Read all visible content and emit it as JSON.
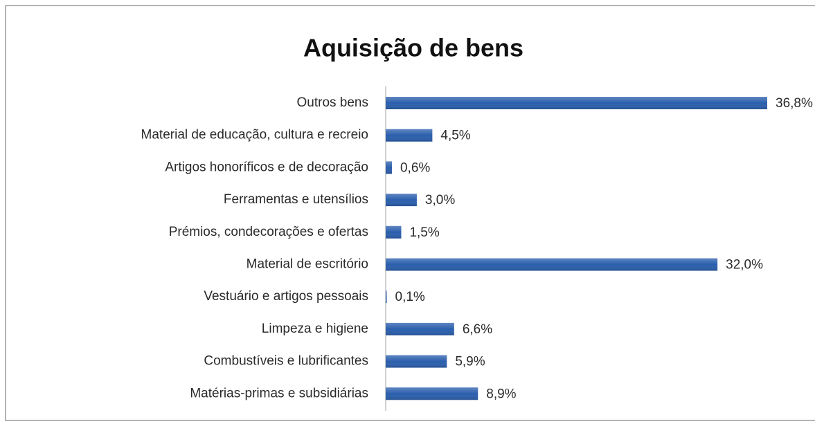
{
  "chart_data": {
    "type": "barh",
    "title": "Aquisição de bens",
    "categories": [
      "Outros bens",
      "Material de educação, cultura e recreio",
      "Artigos honoríficos e de decoração",
      "Ferramentas e utensílios",
      "Prémios, condecorações e ofertas",
      "Material de escritório",
      "Vestuário e artigos pessoais",
      "Limpeza e higiene",
      "Combustíveis e lubrificantes",
      "Matérias-primas e subsidiárias"
    ],
    "values": [
      36.8,
      4.5,
      0.6,
      3.0,
      1.5,
      32.0,
      0.1,
      6.6,
      5.9,
      8.9
    ],
    "value_labels": [
      "36,8%",
      "4,5%",
      "0,6%",
      "3,0%",
      "1,5%",
      "32,0%",
      "0,1%",
      "6,6%",
      "5,9%",
      "8,9%"
    ],
    "color": "#2b5fad"
  }
}
